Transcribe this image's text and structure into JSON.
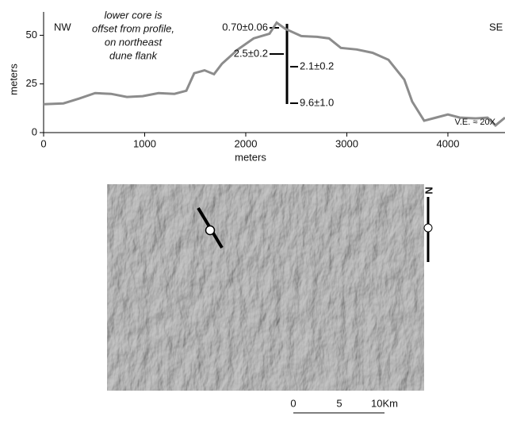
{
  "chart_data": {
    "type": "line",
    "x_label": "meters",
    "y_label": "meters",
    "x": [
      0,
      196,
      353,
      510,
      667,
      824,
      980,
      1137,
      1294,
      1412,
      1490,
      1592,
      1686,
      1765,
      1922,
      2078,
      2235,
      2306,
      2392,
      2549,
      2706,
      2824,
      2941,
      3098,
      3255,
      3412,
      3569,
      3647,
      3765,
      3882,
      4000,
      4118,
      4275,
      4392,
      4471,
      4565
    ],
    "series": [
      {
        "color": "#8c8c8c",
        "values": [
          14.6,
          15,
          17.5,
          20.3,
          19.9,
          18.3,
          18.7,
          20.3,
          19.9,
          21.5,
          30.5,
          32,
          30,
          35.4,
          42.7,
          48.4,
          50.8,
          56.5,
          53.3,
          49.6,
          49.2,
          48.4,
          43.5,
          42.7,
          41,
          37.4,
          27.2,
          15.9,
          6.1,
          7.7,
          9.3,
          7.7,
          7.3,
          7.7,
          3.7,
          7.7
        ]
      }
    ],
    "xlim": [
      0,
      4565
    ],
    "ylim": [
      0,
      62
    ],
    "xticks": [
      0,
      1000,
      2000,
      3000,
      4000
    ],
    "yticks": [
      0,
      25,
      50
    ],
    "annotations": [
      "NW",
      "SE",
      "lower core is",
      "offset from profile,",
      "on northeast",
      "dune flank",
      "0.70±0.06",
      "2.5±0.2",
      "2.1±0.2",
      "9.6±1.0",
      "V.E. ≈ 20X"
    ]
  },
  "map": {
    "north": "N",
    "scale_labels": [
      "0",
      "5",
      "10Km"
    ]
  }
}
